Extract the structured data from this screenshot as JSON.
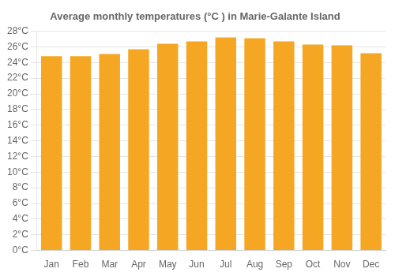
{
  "chart_data": {
    "type": "bar",
    "title": "Average monthly temperatures (°C ) in Marie-Galante Island",
    "categories": [
      "Jan",
      "Feb",
      "Mar",
      "Apr",
      "May",
      "Jun",
      "Jul",
      "Aug",
      "Sep",
      "Oct",
      "Nov",
      "Dec"
    ],
    "values": [
      24.8,
      24.8,
      25.1,
      25.7,
      26.4,
      26.7,
      27.2,
      27.1,
      26.7,
      26.3,
      26.2,
      25.2
    ],
    "color": "#F5A623",
    "ylim": [
      0,
      28
    ],
    "yticks": [
      {
        "value": 0,
        "label": "0°C"
      },
      {
        "value": 2,
        "label": "2°C"
      },
      {
        "value": 4,
        "label": "4°C"
      },
      {
        "value": 6,
        "label": "6°C"
      },
      {
        "value": 8,
        "label": "8°C"
      },
      {
        "value": 10,
        "label": "10°C"
      },
      {
        "value": 12,
        "label": "12°C"
      },
      {
        "value": 14,
        "label": "14°C"
      },
      {
        "value": 16,
        "label": "16°C"
      },
      {
        "value": 18,
        "label": "18°C"
      },
      {
        "value": 20,
        "label": "20°C"
      },
      {
        "value": 22,
        "label": "22°C"
      },
      {
        "value": 24,
        "label": "24°C"
      },
      {
        "value": 26,
        "label": "26°C"
      },
      {
        "value": 28,
        "label": "28°C"
      }
    ],
    "grid": true
  }
}
